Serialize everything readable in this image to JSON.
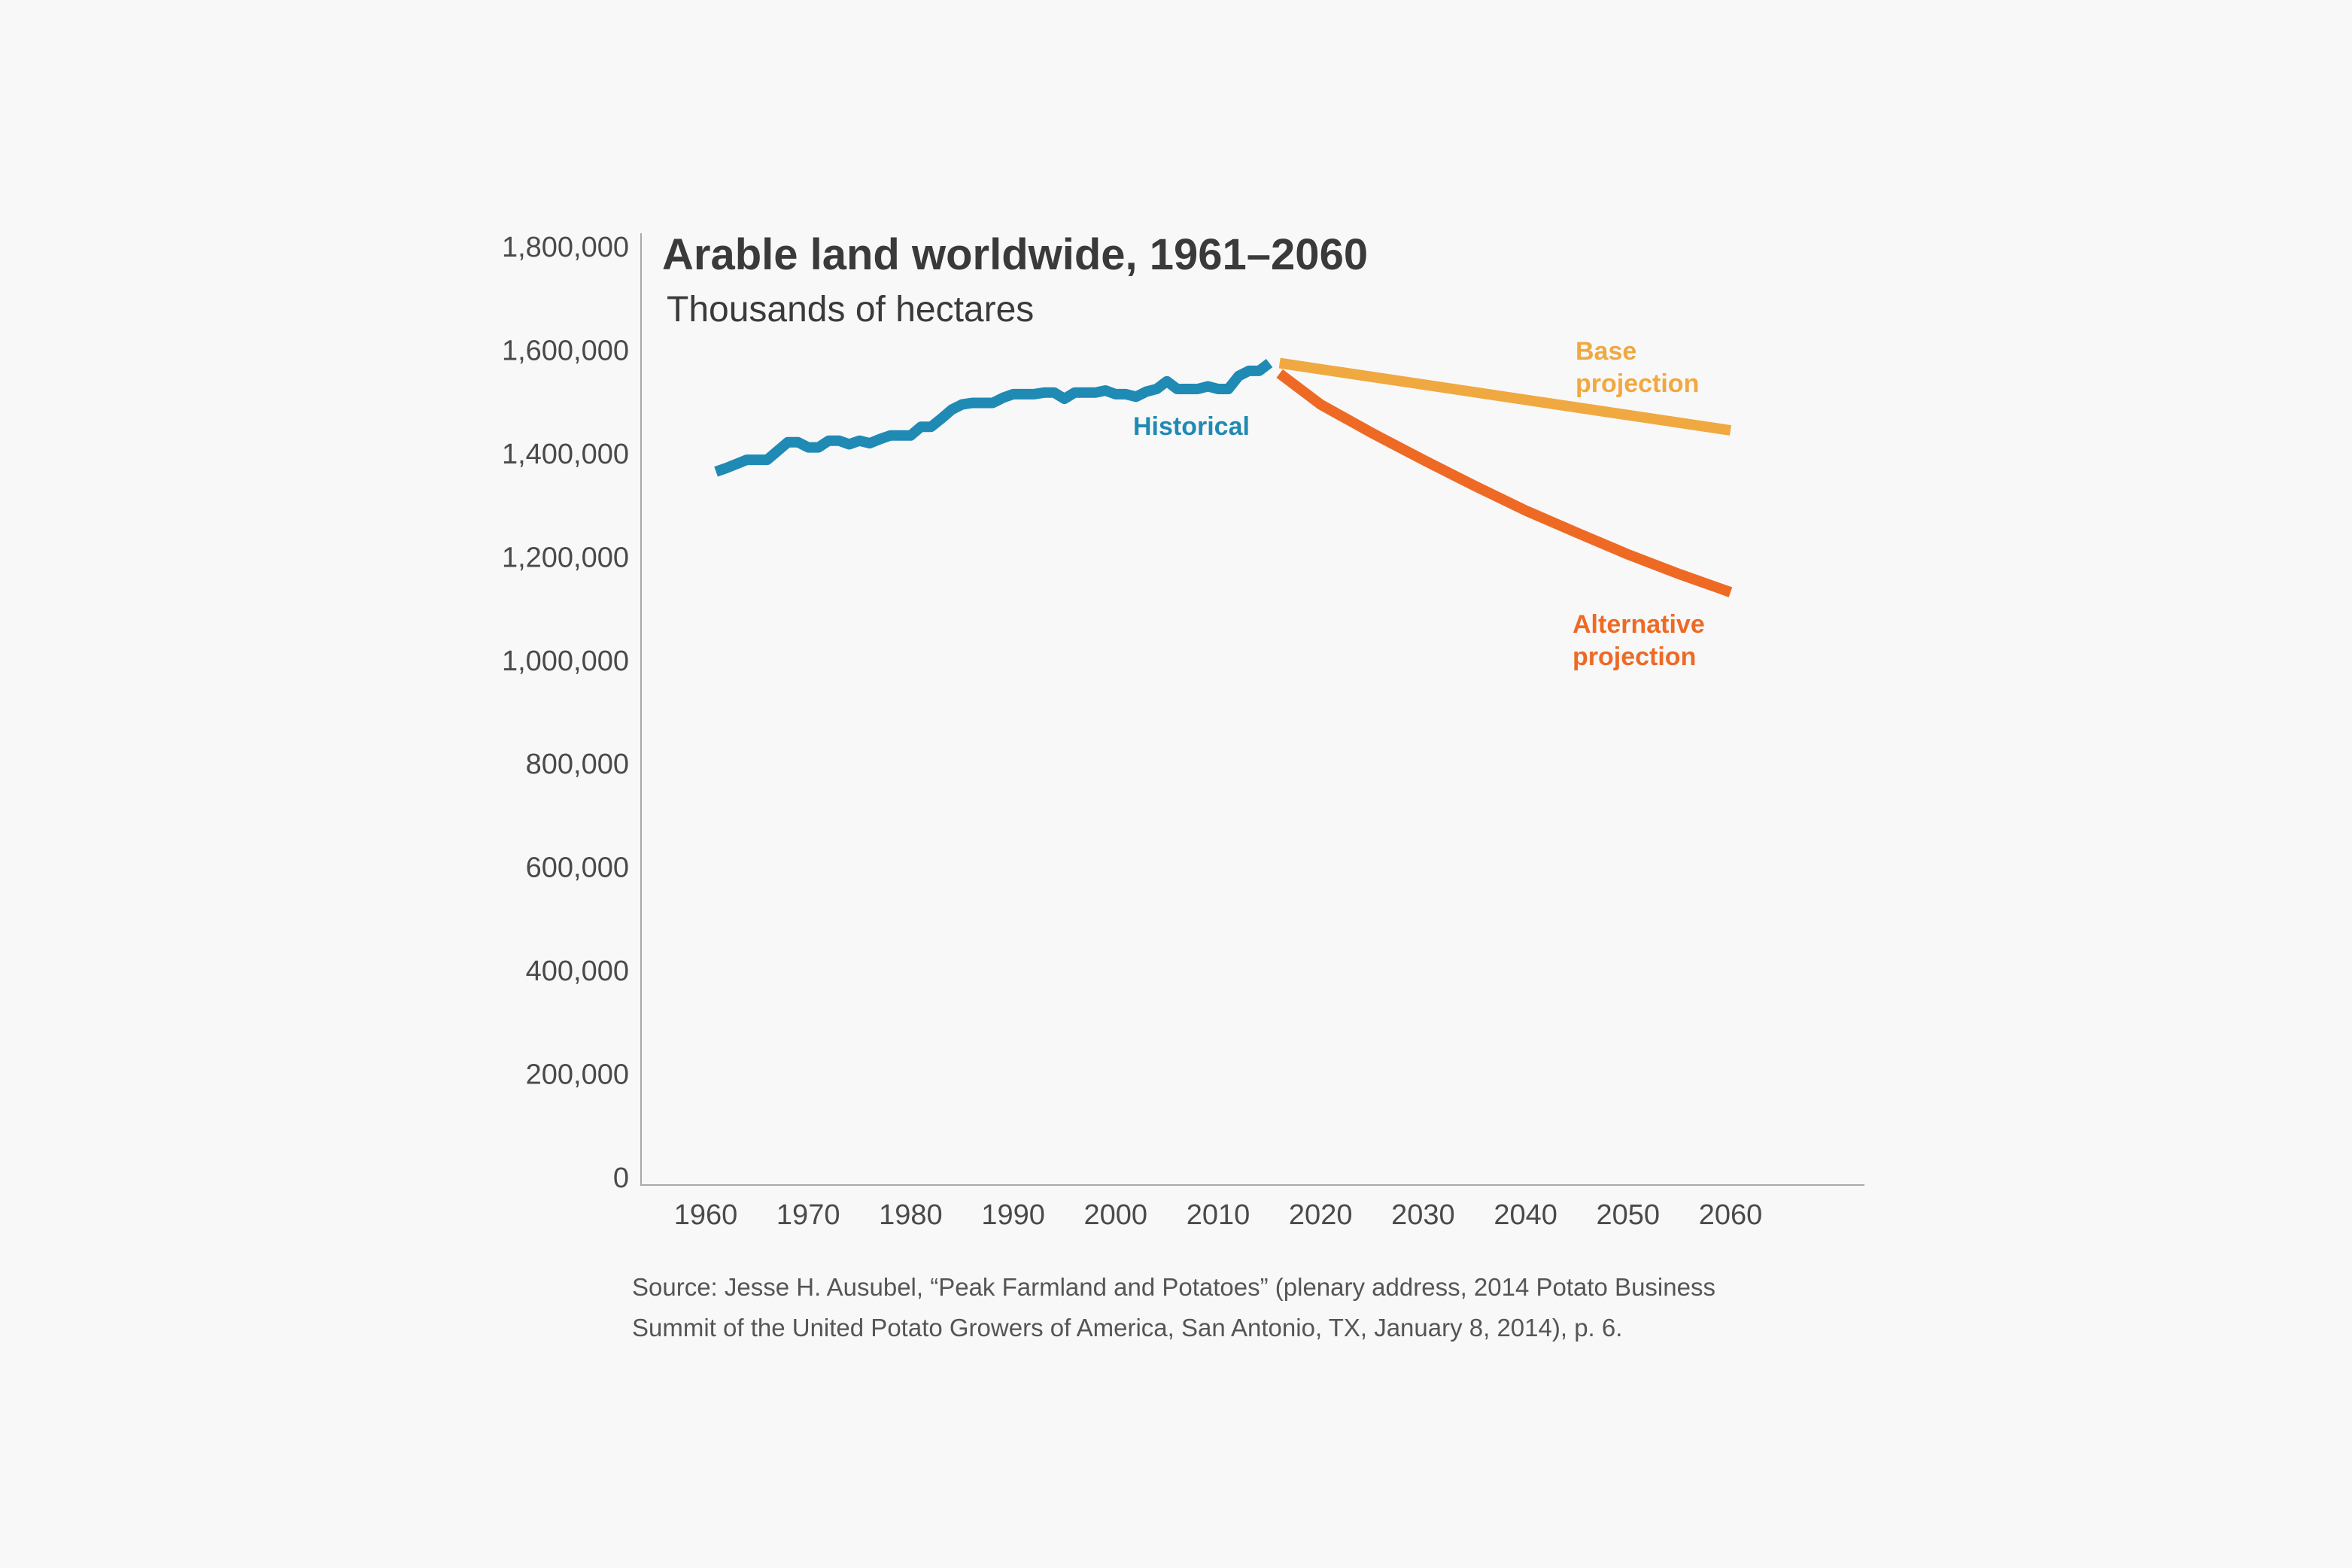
{
  "chart_data": {
    "type": "line",
    "title": "Arable land worldwide, 1961–2060",
    "subtitle": "Thousands of hectares",
    "xlabel": "",
    "ylabel": "",
    "xlim": [
      1955,
      2065
    ],
    "ylim": [
      0,
      1800000
    ],
    "x_ticks": [
      1960,
      1970,
      1980,
      1990,
      2000,
      2010,
      2020,
      2030,
      2040,
      2050,
      2060
    ],
    "y_ticks": [
      0,
      200000,
      400000,
      600000,
      800000,
      1000000,
      1200000,
      1400000,
      1600000,
      1800000
    ],
    "y_tick_labels": [
      "0",
      "200,000",
      "400,000",
      "600,000",
      "800,000",
      "1,000,000",
      "1,200,000",
      "1,400,000",
      "1,600,000",
      "1,800,000"
    ],
    "grid": false,
    "legend": "inline labels",
    "series": [
      {
        "name": "Historical",
        "color": "#1f8ab4",
        "x": [
          1961,
          1962,
          1963,
          1964,
          1965,
          1966,
          1967,
          1968,
          1969,
          1970,
          1971,
          1972,
          1973,
          1974,
          1975,
          1976,
          1977,
          1978,
          1979,
          1980,
          1981,
          1982,
          1983,
          1984,
          1985,
          1986,
          1987,
          1988,
          1989,
          1990,
          1991,
          1992,
          1993,
          1994,
          1995,
          1996,
          1997,
          1998,
          1999,
          2000,
          2001,
          2002,
          2003,
          2004,
          2005,
          2006,
          2007,
          2008,
          2009,
          2010,
          2011,
          2012,
          2013,
          2014,
          2015
        ],
        "values": [
          1365000,
          1372000,
          1380000,
          1388000,
          1388000,
          1388000,
          1405000,
          1422000,
          1422000,
          1412000,
          1412000,
          1425000,
          1425000,
          1418000,
          1425000,
          1420000,
          1428000,
          1435000,
          1435000,
          1435000,
          1452000,
          1452000,
          1468000,
          1485000,
          1495000,
          1498000,
          1498000,
          1498000,
          1508000,
          1515000,
          1515000,
          1515000,
          1518000,
          1518000,
          1506000,
          1518000,
          1518000,
          1518000,
          1522000,
          1515000,
          1515000,
          1510000,
          1520000,
          1525000,
          1540000,
          1525000,
          1525000,
          1525000,
          1530000,
          1525000,
          1525000,
          1550000,
          1560000,
          1560000,
          1575000
        ]
      },
      {
        "name": "Base projection",
        "color": "#f0a840",
        "x": [
          2016,
          2060
        ],
        "values": [
          1575000,
          1445000
        ]
      },
      {
        "name": "Alternative projection",
        "color": "#ee6a24",
        "x": [
          2016,
          2020,
          2025,
          2030,
          2035,
          2040,
          2045,
          2050,
          2055,
          2060
        ],
        "values": [
          1555000,
          1495000,
          1440000,
          1388000,
          1338000,
          1290000,
          1247000,
          1205000,
          1167000,
          1132000
        ]
      }
    ],
    "annotations": [
      {
        "lines": [
          "Historical"
        ],
        "color": "#1f8ab4"
      },
      {
        "lines": [
          "Base",
          "projection"
        ],
        "color": "#f0a840"
      },
      {
        "lines": [
          "Alternative",
          "projection"
        ],
        "color": "#ee6a24"
      }
    ],
    "source": [
      "Source: Jesse H. Ausubel, “Peak Farmland and Potatoes” (plenary address, 2014 Potato Business",
      "Summit of the United Potato Growers of America, San Antonio, TX, January 8, 2014), p. 6."
    ]
  }
}
